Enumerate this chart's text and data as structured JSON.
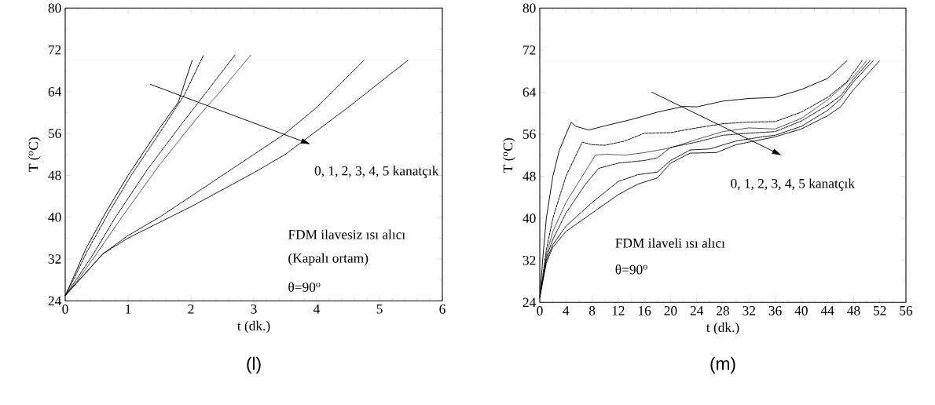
{
  "chart_data": [
    {
      "type": "line",
      "xlabel": "t (dk.)",
      "ylabel": "T ($^{o}$C)",
      "xlim": [
        0,
        6
      ],
      "ylim": [
        24,
        80
      ],
      "xticks": [
        0,
        1,
        2,
        3,
        4,
        5,
        6
      ],
      "yticks": [
        24,
        32,
        40,
        48,
        56,
        64,
        72,
        80
      ],
      "annotations": [
        "0, 1, 2, 3, 4, 5 kanatçık",
        "FDM ilavesiz ısı alıcı",
        "(Kapalı ortam)",
        "θ=90$^{o}$",
        "(l)"
      ],
      "ref_lines": [
        {
          "axis": "y",
          "value": 70,
          "color": "#d9d9d9",
          "line_style": "dotted"
        }
      ],
      "series": [
        {
          "color": "#000000",
          "line_style": "solid",
          "x": [
            0,
            0.15,
            0.33,
            0.65,
            1,
            1.5,
            1.8,
            2.02
          ],
          "values": [
            25,
            29,
            34,
            41,
            48,
            57,
            62,
            70
          ]
        },
        {
          "color": "#000000",
          "line_style": "dashed",
          "x": [
            0,
            0.15,
            0.35,
            0.7,
            1.05,
            1.55,
            1.9,
            2.2
          ],
          "values": [
            25,
            28.5,
            33.5,
            41,
            48,
            57,
            63.5,
            71
          ]
        },
        {
          "color": "#000000",
          "line_style": "dashdot",
          "x": [
            0,
            0.2,
            0.45,
            0.8,
            1.3,
            1.8,
            2.25,
            2.7
          ],
          "values": [
            25,
            28.5,
            33,
            40,
            49,
            57,
            64,
            71
          ]
        },
        {
          "color": "#444444",
          "line_style": "dotted",
          "x": [
            0,
            0.2,
            0.5,
            0.9,
            1.5,
            2.1,
            2.5,
            2.95
          ],
          "values": [
            25,
            28,
            33,
            40,
            50,
            59,
            64.5,
            71
          ]
        },
        {
          "color": "#000000",
          "line_style": "dashdotdotted",
          "x": [
            0,
            0.3,
            0.6,
            1,
            1.5,
            2,
            3,
            3.5,
            4,
            4.75
          ],
          "values": [
            25,
            29,
            33,
            36.5,
            40,
            44,
            52,
            56,
            61,
            70
          ]
        },
        {
          "color": "#000000",
          "line_style": "dotted",
          "x": [
            0,
            0.3,
            0.6,
            1,
            1.5,
            2,
            3,
            3.5,
            4.5,
            5.45
          ],
          "values": [
            25,
            29,
            33,
            36,
            39,
            42,
            48.5,
            52,
            61,
            70
          ]
        }
      ]
    },
    {
      "type": "line",
      "xlabel": "t (dk.)",
      "ylabel": "T ($^{o}$C)",
      "xlim": [
        0,
        56
      ],
      "ylim": [
        24,
        80
      ],
      "xticks": [
        0,
        4,
        8,
        12,
        16,
        20,
        24,
        28,
        32,
        36,
        40,
        44,
        48,
        52,
        56
      ],
      "yticks": [
        24,
        32,
        40,
        48,
        56,
        64,
        72,
        80
      ],
      "annotations": [
        "0, 1, 2, 3, 4, 5 kanatçık",
        "FDM ilaveli ısı alıcı",
        "θ=90$^{o}$",
        "(m)"
      ],
      "ref_lines": [
        {
          "axis": "y",
          "value": 70,
          "color": "#d9d9d9",
          "line_style": "dotted"
        }
      ],
      "series": [
        {
          "color": "#000000",
          "line_style": "solid",
          "x": [
            0,
            0.5,
            1,
            2,
            3,
            4.8,
            5.5,
            7.5,
            10,
            14,
            18,
            22,
            24,
            28,
            32,
            36,
            40,
            44,
            47
          ],
          "values": [
            25,
            33,
            40,
            48,
            53,
            58.3,
            57.5,
            56.8,
            57.6,
            58.8,
            60.2,
            61.3,
            61.2,
            62.3,
            62.8,
            63,
            64.5,
            66.6,
            70
          ]
        },
        {
          "color": "#000000",
          "line_style": "dashed",
          "x": [
            0,
            1,
            2,
            4,
            6.5,
            8,
            10,
            13,
            16,
            20,
            24,
            28,
            32,
            36,
            40,
            44,
            47,
            49.3
          ],
          "values": [
            25,
            34,
            40,
            48,
            54.5,
            54,
            53.9,
            54.7,
            56.2,
            56.3,
            57.2,
            58,
            58.3,
            58.4,
            60.2,
            63,
            66,
            70
          ]
        },
        {
          "color": "#444444",
          "line_style": "dotted",
          "x": [
            0,
            1,
            2,
            4,
            6,
            8.5,
            10,
            13,
            16,
            20,
            24,
            28,
            32,
            36,
            40,
            44,
            48,
            50
          ],
          "values": [
            25,
            33,
            37.5,
            43,
            47,
            52,
            52.2,
            52,
            52.5,
            53.4,
            55,
            56.5,
            57.2,
            57,
            59,
            62.5,
            67,
            70
          ]
        },
        {
          "color": "#000000",
          "line_style": "dashdot",
          "x": [
            0,
            1,
            2,
            4,
            7,
            9,
            12,
            16,
            18,
            20,
            24,
            28,
            32,
            36,
            40,
            44,
            46,
            48,
            50.5
          ],
          "values": [
            25,
            32.5,
            36,
            41,
            46.5,
            49.5,
            50.5,
            51,
            51.5,
            53.5,
            54.5,
            55.8,
            56.2,
            56.5,
            58.5,
            61.5,
            63.3,
            66.5,
            70
          ]
        },
        {
          "color": "#000000",
          "line_style": "dashdotdotted",
          "x": [
            0,
            1,
            2,
            4,
            8,
            12,
            15,
            18,
            20,
            23,
            26,
            30,
            34,
            36,
            40,
            44,
            46,
            48,
            51
          ],
          "values": [
            25,
            32,
            35,
            38.5,
            43,
            47,
            48.3,
            48.8,
            51,
            53,
            53.2,
            54.7,
            55.5,
            55.8,
            57.5,
            60.5,
            62.7,
            66,
            70
          ]
        },
        {
          "color": "#000000",
          "line_style": "dotted",
          "x": [
            0,
            1,
            2,
            4,
            8,
            12,
            15,
            18,
            20,
            23,
            27,
            30,
            34,
            36,
            40,
            44,
            46,
            48,
            52
          ],
          "values": [
            25,
            31.5,
            34.5,
            37.5,
            41,
            44.5,
            46.5,
            47.7,
            50.5,
            52.4,
            52.5,
            54,
            55,
            55.5,
            57,
            59.5,
            61.2,
            64.5,
            70
          ]
        }
      ]
    }
  ]
}
